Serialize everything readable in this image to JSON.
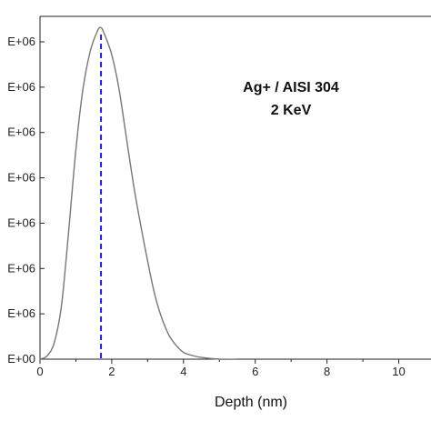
{
  "chart_data": {
    "type": "line",
    "title": "",
    "xlabel": "Depth  (nm)",
    "ylabel": "",
    "xlim": [
      0,
      11
    ],
    "x_ticks": [
      0,
      2,
      4,
      6,
      8,
      10
    ],
    "x_tick_labels": [
      "0",
      "2",
      "4",
      "6",
      "8",
      "10"
    ],
    "y_tick_labels": [
      "E+00",
      "E+06",
      "E+06",
      "E+06",
      "E+06",
      "E+06",
      "E+06",
      "E+06"
    ],
    "annotation_lines": [
      "Ag+ / AISI 304",
      "2 KeV"
    ],
    "peak_marker": {
      "x": 1.7,
      "style": "dashed",
      "color": "#2222cc"
    },
    "grid": false,
    "series": [
      {
        "color": "#777777",
        "x": [
          0.0,
          0.2,
          0.4,
          0.6,
          0.8,
          1.0,
          1.2,
          1.4,
          1.6,
          1.7,
          1.8,
          2.0,
          2.2,
          2.4,
          2.6,
          2.8,
          3.0,
          3.2,
          3.4,
          3.6,
          3.8,
          4.0,
          4.2,
          4.5,
          5.0,
          5.5
        ],
        "values": [
          0.0,
          0.01,
          0.05,
          0.16,
          0.38,
          0.62,
          0.8,
          0.91,
          0.97,
          0.98,
          0.96,
          0.9,
          0.8,
          0.66,
          0.52,
          0.4,
          0.29,
          0.19,
          0.12,
          0.07,
          0.04,
          0.02,
          0.012,
          0.005,
          0.0,
          0.0
        ]
      }
    ]
  }
}
